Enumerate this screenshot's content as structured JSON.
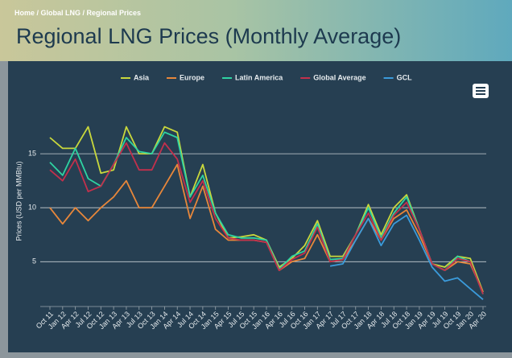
{
  "breadcrumb": "Home / Global LNG / Regional Prices",
  "page_title": "Regional LNG Prices (Monthly Average)",
  "chart_data": {
    "type": "line",
    "y_label": "Prices (USD per MMBtu)",
    "categories": [
      "Oct 11",
      "Jan 12",
      "Apr 12",
      "Jul 12",
      "Oct 12",
      "Jan 13",
      "Apr 13",
      "Jul 13",
      "Oct 13",
      "Jan 14",
      "Apr 14",
      "Jul 14",
      "Oct 14",
      "Jan 15",
      "Apr 15",
      "Jul 15",
      "Oct 15",
      "Jan 16",
      "Apr 16",
      "Jul 16",
      "Oct 16",
      "Jan 17",
      "Apr 17",
      "Jul 17",
      "Oct 17",
      "Jan 18",
      "Apr 18",
      "Jul 18",
      "Oct 18",
      "Jan 19",
      "Apr 19",
      "Jul 19",
      "Oct 19",
      "Jan 20",
      "Apr 20"
    ],
    "series": [
      {
        "name": "Asia",
        "color": "#c9d83c",
        "values": [
          16.5,
          15.5,
          15.5,
          17.5,
          13.2,
          13.5,
          17.5,
          15,
          15,
          17.5,
          17,
          11,
          14,
          9.5,
          7.2,
          7.3,
          7.5,
          7,
          4.5,
          5.3,
          6.5,
          8.8,
          5.5,
          5.5,
          7.5,
          10.3,
          7.5,
          10,
          11.2,
          8,
          4.8,
          4.5,
          5.5,
          5.3,
          2.2
        ]
      },
      {
        "name": "Europe",
        "color": "#e8873a",
        "values": [
          10,
          8.5,
          10,
          8.8,
          10,
          11,
          12.5,
          10,
          10,
          12,
          14,
          9,
          12,
          8,
          7,
          7,
          7,
          6.8,
          4.2,
          5,
          5.3,
          7.5,
          5,
          5.2,
          7,
          9,
          7,
          9,
          9.8,
          7.5,
          4.8,
          4.2,
          5,
          4.8,
          2.2
        ]
      },
      {
        "name": "Latin America",
        "color": "#2fd3a2",
        "values": [
          14.2,
          13,
          15.5,
          12.7,
          12,
          14,
          16.5,
          15.2,
          15,
          17,
          16.5,
          11,
          13,
          9.5,
          7.5,
          7.2,
          7.2,
          7,
          4.3,
          5.5,
          6,
          8.5,
          5.2,
          5.3,
          7.5,
          10,
          7.2,
          9.5,
          11,
          8,
          4.8,
          4.2,
          5.5,
          5,
          2
        ]
      },
      {
        "name": "Global Average",
        "color": "#c3304c",
        "values": [
          13.5,
          12.5,
          14.5,
          11.5,
          12,
          14,
          16,
          13.5,
          13.5,
          16,
          14.5,
          10.5,
          12.5,
          9,
          7.2,
          7,
          7,
          6.8,
          4.2,
          5.2,
          5.8,
          8.2,
          5,
          5.2,
          7.5,
          9.5,
          7,
          9.3,
          10.5,
          8,
          4.8,
          4.2,
          5.3,
          5,
          2
        ]
      },
      {
        "name": "GCL",
        "color": "#3b9bdb",
        "values": [
          null,
          null,
          null,
          null,
          null,
          null,
          null,
          null,
          null,
          null,
          null,
          null,
          null,
          null,
          null,
          null,
          null,
          null,
          null,
          null,
          null,
          null,
          4.6,
          4.8,
          7,
          9,
          6.5,
          8.5,
          9.3,
          7,
          4.5,
          3.2,
          3.5,
          2.5,
          1.5
        ]
      }
    ],
    "ylim": [
      1,
      20
    ],
    "yticks": [
      5,
      10,
      15
    ],
    "grid": true,
    "legend": "top"
  }
}
